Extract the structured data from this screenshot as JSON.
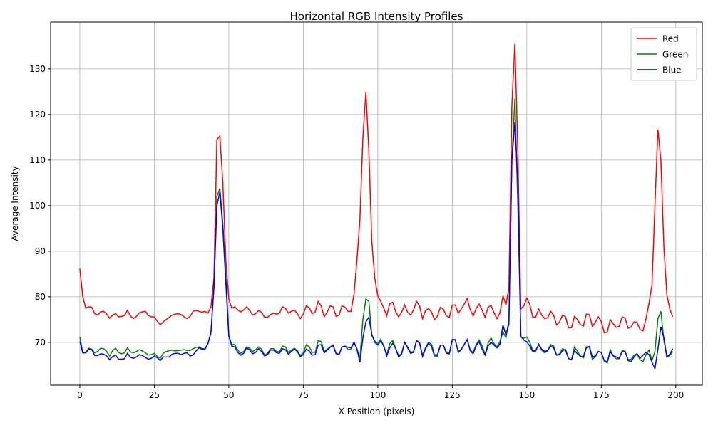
{
  "chart_data": {
    "type": "line",
    "title": "Horizontal RGB Intensity Profiles",
    "xlabel": "X Position (pixels)",
    "ylabel": "Average Intensity",
    "x": [
      0,
      1,
      2,
      3,
      4,
      5,
      6,
      7,
      8,
      9,
      10,
      11,
      12,
      13,
      14,
      15,
      16,
      17,
      18,
      19,
      20,
      21,
      22,
      23,
      24,
      25,
      26,
      27,
      28,
      29,
      30,
      31,
      32,
      33,
      34,
      35,
      36,
      37,
      38,
      39,
      40,
      41,
      42,
      43,
      44,
      45,
      46,
      47,
      48,
      49,
      50,
      51,
      52,
      53,
      54,
      55,
      56,
      57,
      58,
      59,
      60,
      61,
      62,
      63,
      64,
      65,
      66,
      67,
      68,
      69,
      70,
      71,
      72,
      73,
      74,
      75,
      76,
      77,
      78,
      79,
      80,
      81,
      82,
      83,
      84,
      85,
      86,
      87,
      88,
      89,
      90,
      91,
      92,
      93,
      94,
      95,
      96,
      97,
      98,
      99,
      100,
      101,
      102,
      103,
      104,
      105,
      106,
      107,
      108,
      109,
      110,
      111,
      112,
      113,
      114,
      115,
      116,
      117,
      118,
      119,
      120,
      121,
      122,
      123,
      124,
      125,
      126,
      127,
      128,
      129,
      130,
      131,
      132,
      133,
      134,
      135,
      136,
      137,
      138,
      139,
      140,
      141,
      142,
      143,
      144,
      145,
      146,
      147,
      148,
      149,
      150,
      151,
      152,
      153,
      154,
      155,
      156,
      157,
      158,
      159,
      160,
      161,
      162,
      163,
      164,
      165,
      166,
      167,
      168,
      169,
      170,
      171,
      172,
      173,
      174,
      175,
      176,
      177,
      178,
      179,
      180,
      181,
      182,
      183,
      184,
      185,
      186,
      187,
      188,
      189,
      190,
      191,
      192,
      193,
      194,
      195,
      196,
      197,
      198,
      199
    ],
    "series": [
      {
        "name": "Red",
        "color": "#ff0000",
        "values": [
          86.2,
          80,
          77.5,
          77.8,
          77.7,
          76.3,
          76,
          76.7,
          76.8,
          76.2,
          75.3,
          76,
          76.3,
          75.6,
          75.7,
          75.9,
          77,
          75.8,
          75.2,
          75.7,
          76.5,
          76.7,
          76.8,
          75.9,
          75.6,
          75.6,
          74.6,
          73.9,
          74.5,
          75,
          75.5,
          76,
          76.2,
          76.3,
          76.1,
          75.6,
          75.2,
          75.7,
          76.8,
          77,
          76.8,
          76.6,
          76.8,
          76.4,
          77.8,
          84,
          114.5,
          115.3,
          105,
          88,
          79.5,
          77.5,
          77.8,
          77.1,
          76.7,
          77.1,
          77.8,
          77,
          76,
          76.3,
          77,
          76.6,
          75.5,
          75.5,
          76.1,
          76.4,
          76.2,
          76.4,
          77.8,
          77.5,
          76.4,
          76.8,
          77.1,
          76.3,
          75.2,
          76.2,
          78,
          77.6,
          76.3,
          76.7,
          79,
          78,
          75.6,
          76.6,
          78,
          77.8,
          75.7,
          76,
          78,
          77.7,
          76.8,
          76.8,
          80.5,
          88,
          97,
          115,
          125,
          112,
          92,
          84,
          80.2,
          79,
          77.5,
          75.8,
          78.5,
          78.8,
          76.7,
          75.6,
          76.6,
          78.2,
          76.6,
          76,
          77.1,
          79,
          78,
          75.2,
          77,
          77.4,
          76.7,
          75,
          75.7,
          77.7,
          77.3,
          75.8,
          75.5,
          78.2,
          78.2,
          76.4,
          77.3,
          78.4,
          79.6,
          77.2,
          75.8,
          77.4,
          78.4,
          77.1,
          75.5,
          77.7,
          78.1,
          76.5,
          75.2,
          76.5,
          80.2,
          78.2,
          82,
          122,
          135.5,
          112,
          77.3,
          78,
          79.7,
          78.3,
          75.5,
          75.6,
          77.3,
          76,
          75.2,
          75.4,
          76.8,
          76,
          73.8,
          74.5,
          76,
          75.6,
          73.2,
          73.2,
          75.7,
          75,
          73.9,
          73.6,
          76.2,
          76.1,
          73.5,
          74.4,
          75.6,
          74.6,
          72.1,
          72.2,
          75,
          74.1,
          73.3,
          73.5,
          75.6,
          75.3,
          73.1,
          73.4,
          74.5,
          74.4,
          72.8,
          72.5,
          75.2,
          78.5,
          82.5,
          100,
          116.7,
          110,
          91,
          80.5,
          77.3,
          75.6
        ]
      },
      {
        "name": "Green",
        "color": "#008000",
        "values": [
          71.2,
          67.7,
          67.8,
          68.7,
          68.5,
          67.7,
          68,
          68.7,
          68.6,
          68,
          67,
          68.2,
          68.7,
          67.8,
          67.5,
          67.7,
          68.8,
          67.9,
          67.7,
          68,
          68.4,
          68.1,
          67.7,
          67.2,
          67.3,
          67.6,
          66.9,
          66.5,
          67.6,
          68,
          68.2,
          68.3,
          68.1,
          68.2,
          68.3,
          68.4,
          68.2,
          68.2,
          68.6,
          68.9,
          69,
          68.6,
          68.6,
          69.8,
          72,
          82,
          102,
          103.8,
          96,
          85,
          71.5,
          69.5,
          69.5,
          68.3,
          67.6,
          68,
          69,
          68.7,
          68,
          68.4,
          69,
          68.5,
          67.2,
          67.6,
          68.6,
          68.6,
          68,
          67.9,
          69.2,
          69,
          67.8,
          68.3,
          68.7,
          68.2,
          67.1,
          67.7,
          69.5,
          69,
          67.8,
          67.8,
          70.4,
          70.2,
          68,
          68.5,
          69,
          69.4,
          67.6,
          67.4,
          69,
          69.2,
          68.4,
          68.5,
          70,
          68.6,
          66.5,
          75,
          79.5,
          79,
          71.5,
          70.3,
          69.8,
          70.7,
          69,
          67.3,
          69.7,
          70.4,
          68.7,
          67,
          67.6,
          70,
          69,
          67.8,
          68,
          70.4,
          70,
          67.2,
          68.8,
          70,
          69.6,
          67.3,
          67.3,
          69.4,
          69.4,
          67.9,
          67.6,
          70.6,
          70.5,
          68,
          68.5,
          69.6,
          70.6,
          68.3,
          67.8,
          69.5,
          70.5,
          69.2,
          67.4,
          69.8,
          71,
          69.7,
          69,
          70.2,
          72.3,
          71,
          75,
          110,
          123.5,
          100,
          71.2,
          70.9,
          71.2,
          70,
          68.2,
          68.3,
          69.5,
          68.3,
          67.7,
          68.1,
          69.5,
          69.2,
          67.2,
          67.5,
          68.6,
          68.3,
          66.4,
          66.2,
          69,
          68,
          67,
          66.6,
          68.8,
          69,
          66.3,
          66.8,
          68,
          67.8,
          65.9,
          65.5,
          68.4,
          67,
          66.4,
          66.4,
          68.2,
          68,
          66.2,
          66.3,
          67.2,
          67.5,
          66.2,
          65.8,
          67.3,
          68.3,
          66,
          68,
          75.2,
          76.8,
          70.5,
          66.8,
          67.1,
          68
        ]
      },
      {
        "name": "Blue",
        "color": "#0000ff",
        "values": [
          70.2,
          67.7,
          67.7,
          68.5,
          68.4,
          67.1,
          67.1,
          67.5,
          67.4,
          67,
          66.2,
          66.9,
          67.2,
          66.3,
          66.3,
          66.4,
          67.6,
          66.7,
          66.5,
          66.8,
          67.3,
          67.1,
          66.7,
          66.3,
          66.5,
          67,
          66.6,
          66,
          66.8,
          66.8,
          66.8,
          67.4,
          67.6,
          67.6,
          67.3,
          67.6,
          67.7,
          67,
          67.2,
          68.1,
          68.8,
          68.5,
          68.5,
          69.7,
          72.2,
          82,
          100,
          103,
          95,
          83,
          71.3,
          69.2,
          69,
          67.8,
          67.2,
          67.6,
          68.8,
          68.3,
          67.5,
          67.8,
          68.6,
          68,
          67,
          67.3,
          68.3,
          68.3,
          67.7,
          67.6,
          68.6,
          68.4,
          67.4,
          68,
          68.5,
          68,
          66.9,
          67.3,
          68.5,
          68.1,
          67.2,
          67.3,
          69.4,
          69.5,
          67.7,
          68.3,
          68.9,
          69.3,
          67.5,
          67.3,
          69,
          69.1,
          68.9,
          68.8,
          70,
          68.5,
          65.6,
          71,
          74.5,
          75.5,
          71.7,
          70,
          69.4,
          70.3,
          69.3,
          67,
          68.8,
          69.8,
          68.6,
          66.8,
          67.4,
          70,
          68.8,
          67.6,
          67.8,
          70.4,
          69.8,
          66.9,
          68.6,
          69.7,
          69.2,
          67,
          67,
          69.4,
          69.4,
          67.6,
          67.5,
          70.6,
          70.6,
          67.8,
          68.4,
          69.5,
          70.6,
          68.2,
          67.5,
          69.3,
          70.1,
          68.5,
          67.2,
          69.2,
          70,
          69.4,
          68.8,
          69.6,
          73.8,
          71.6,
          74,
          110,
          118.3,
          105,
          71.3,
          70.5,
          70.1,
          69.2,
          68,
          68.1,
          69.6,
          68.5,
          68,
          68.2,
          69.2,
          68.8,
          67.2,
          67.3,
          68.2,
          68.4,
          66.5,
          66.2,
          68.2,
          67.5,
          66.9,
          66.9,
          69,
          69.1,
          66.8,
          67,
          68,
          67.8,
          66,
          65.7,
          67.9,
          67.1,
          66.8,
          66.5,
          68,
          68,
          66,
          65.8,
          66.8,
          67.5,
          66.5,
          67.2,
          67.8,
          67.3,
          65.7,
          64.2,
          68.5,
          73.4,
          71,
          66.8,
          67.4,
          68.6
        ]
      }
    ],
    "xlim": [
      -9.8,
      208.9
    ],
    "ylim": [
      60.6,
      140.3
    ],
    "xticks": [
      0,
      25,
      50,
      75,
      100,
      125,
      150,
      175,
      200
    ],
    "yticks": [
      70,
      80,
      90,
      100,
      110,
      120,
      130
    ],
    "grid": true,
    "legend": "upper right"
  }
}
